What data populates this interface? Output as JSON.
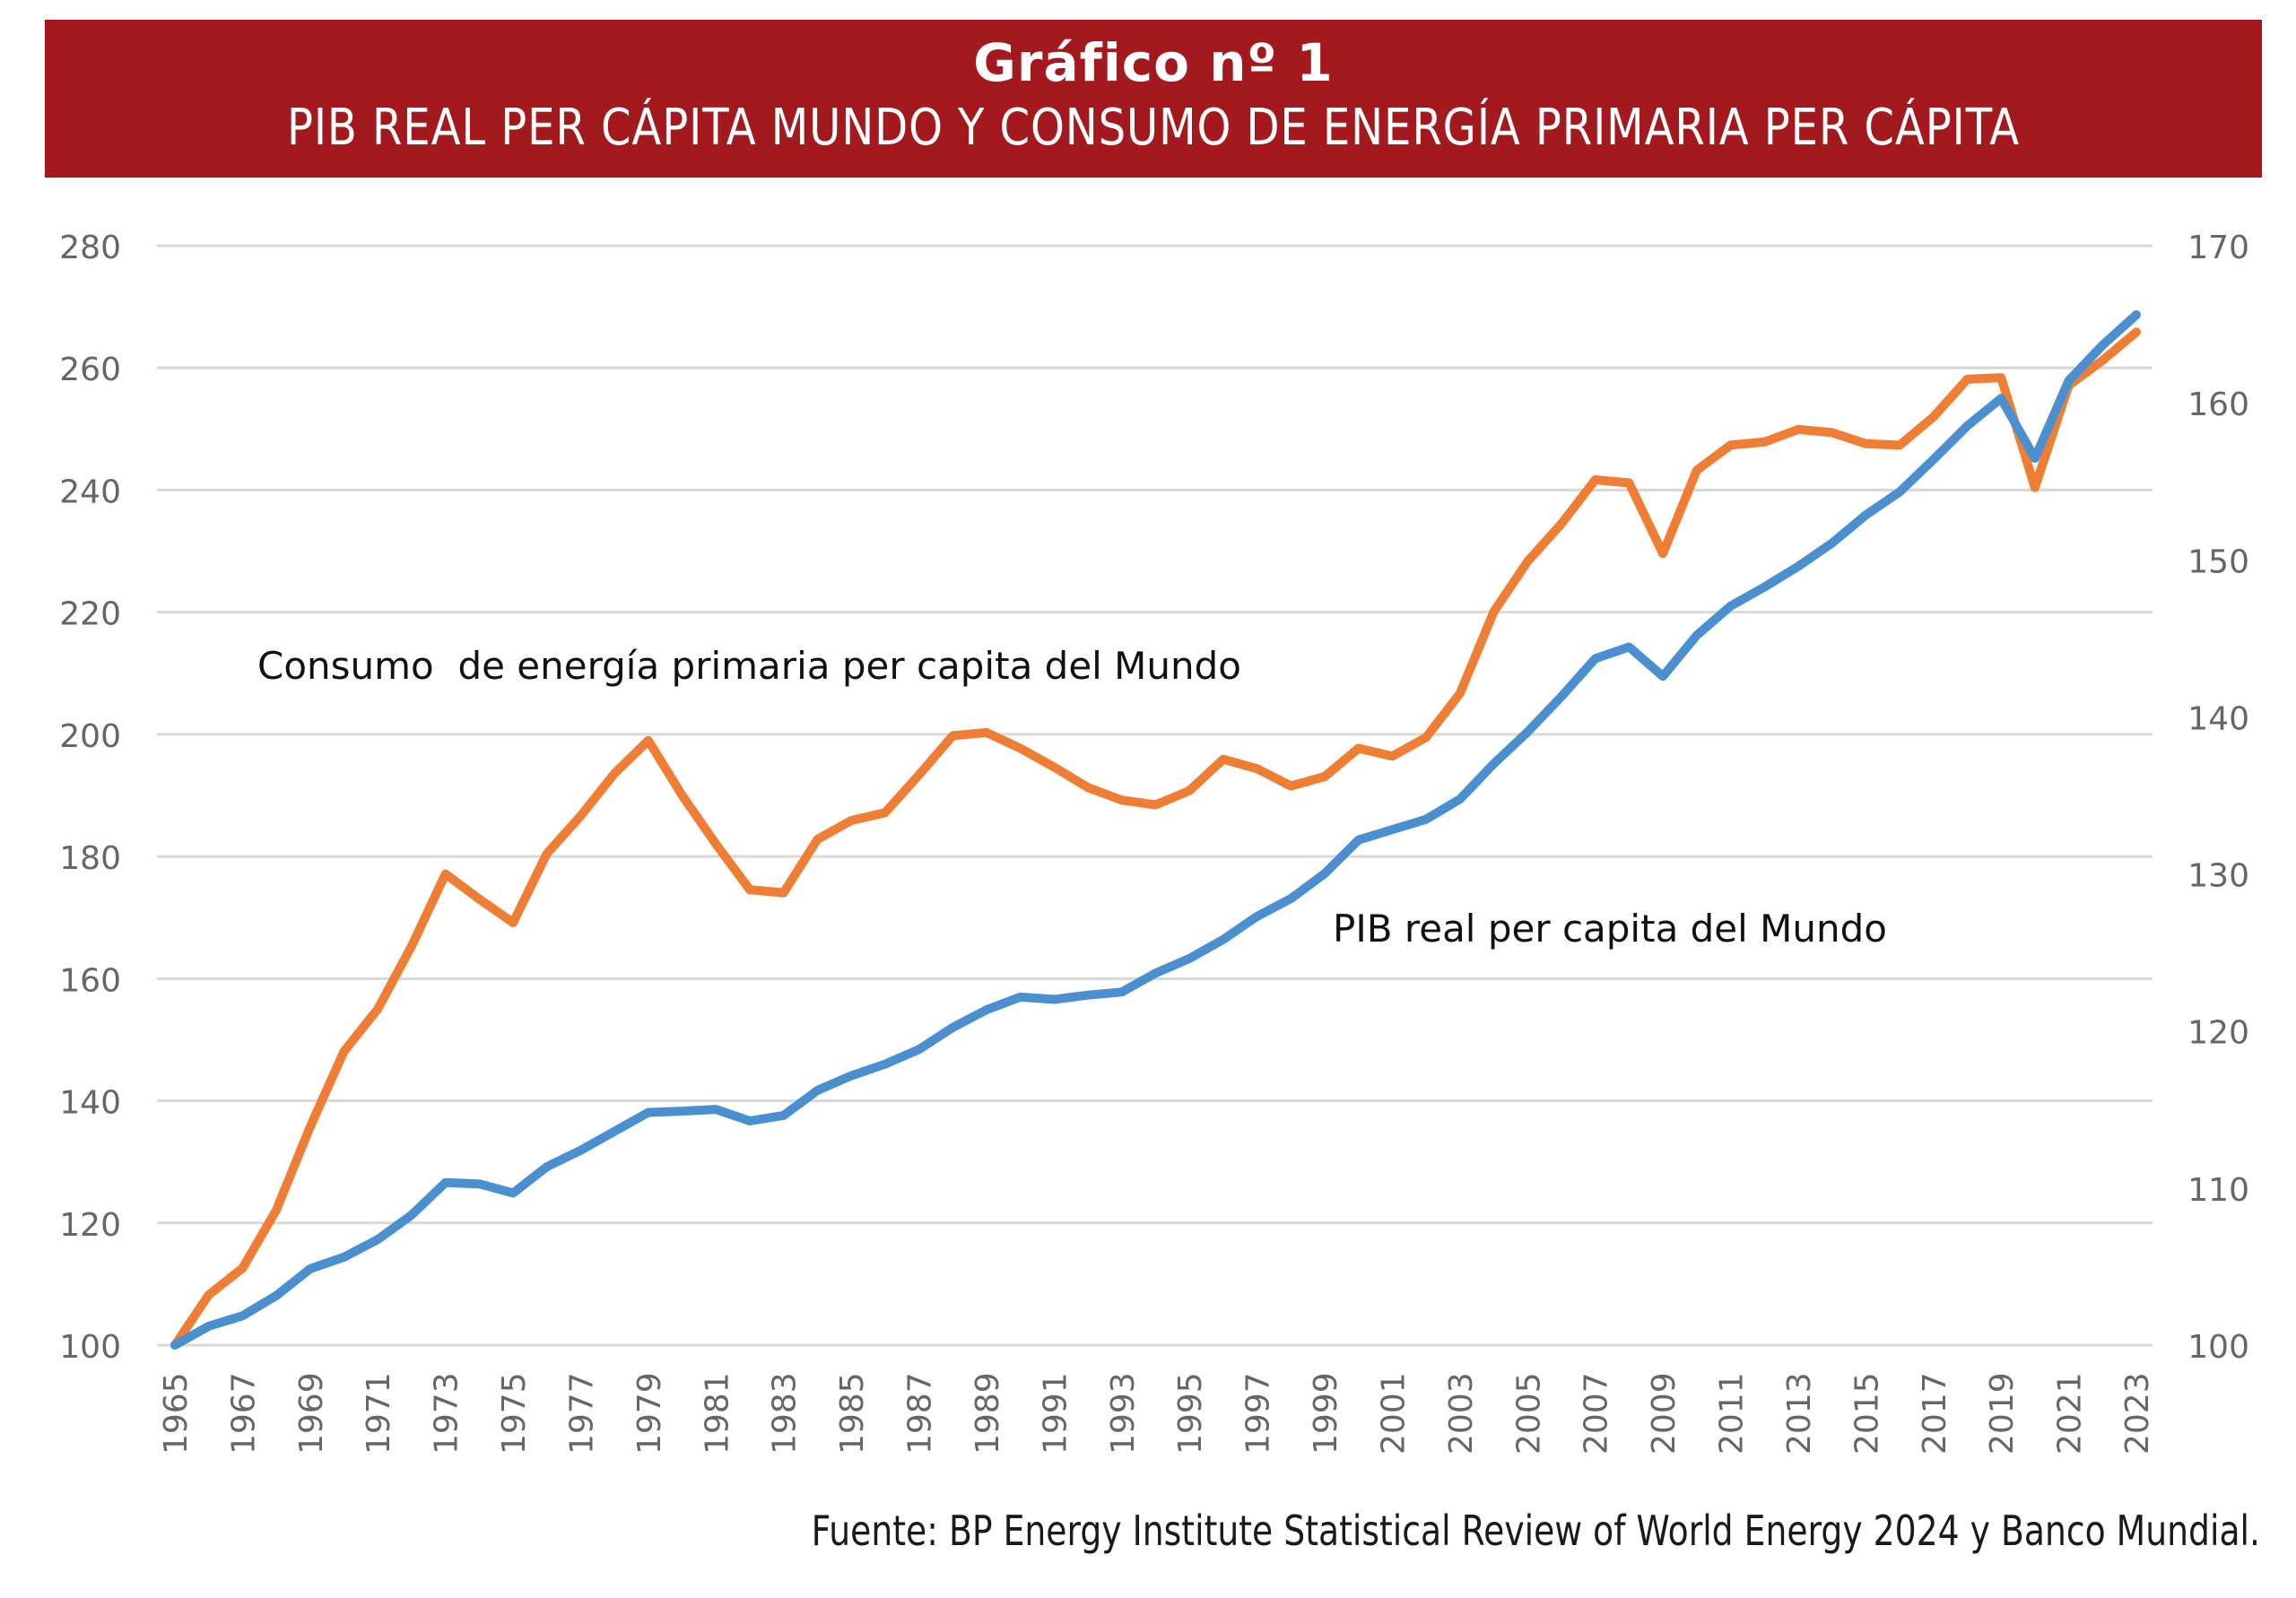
{
  "header": {
    "title": "Gráfico nº 1",
    "subtitle": "PIB REAL PER CÁPITA MUNDO Y CONSUMO DE ENERGÍA PRIMARIA PER CÁPITA",
    "background_color": "#a3191d"
  },
  "source": "Fuente: BP Energy Institute Statistical Review of World Energy 2024 y Banco Mundial.",
  "chart_data": {
    "type": "line",
    "title": "PIB REAL PER CÁPITA MUNDO Y CONSUMO DE ENERGÍA PRIMARIA PER CÁPITA",
    "xlabel": "",
    "ylabel_left": "",
    "ylabel_right": "",
    "x": [
      1965,
      1966,
      1967,
      1968,
      1969,
      1970,
      1971,
      1972,
      1973,
      1974,
      1975,
      1976,
      1977,
      1978,
      1979,
      1980,
      1981,
      1982,
      1983,
      1984,
      1985,
      1986,
      1987,
      1988,
      1989,
      1990,
      1991,
      1992,
      1993,
      1994,
      1995,
      1996,
      1997,
      1998,
      1999,
      2000,
      2001,
      2002,
      2003,
      2004,
      2005,
      2006,
      2007,
      2008,
      2009,
      2010,
      2011,
      2012,
      2013,
      2014,
      2015,
      2016,
      2017,
      2018,
      2019,
      2020,
      2021,
      2022,
      2023
    ],
    "x_tick_labels": [
      "1965",
      "1967",
      "1969",
      "1971",
      "1973",
      "1975",
      "1977",
      "1979",
      "1981",
      "1983",
      "1985",
      "1987",
      "1989",
      "1991",
      "1993",
      "1995",
      "1997",
      "1999",
      "2001",
      "2003",
      "2005",
      "2007",
      "2009",
      "2011",
      "2013",
      "2015",
      "2017",
      "2019",
      "2021",
      "2023"
    ],
    "y_left": {
      "range": [
        100,
        280
      ],
      "ticks": [
        "100",
        "120",
        "140",
        "160",
        "180",
        "200",
        "220",
        "240",
        "260",
        "280"
      ]
    },
    "y_right": {
      "range": [
        100,
        170
      ],
      "ticks": [
        "100",
        "110",
        "120",
        "130",
        "140",
        "150",
        "160",
        "170"
      ]
    },
    "grid": true,
    "series": [
      {
        "name": "PIB real per capita del Mundo",
        "axis": "left",
        "color": "#4a90d0",
        "values": [
          100.0,
          103.1,
          104.8,
          108.1,
          112.5,
          114.4,
          117.3,
          121.3,
          126.6,
          126.4,
          124.9,
          129.2,
          131.9,
          135.0,
          138.1,
          138.3,
          138.6,
          136.7,
          137.6,
          141.7,
          144.1,
          146.0,
          148.4,
          152.0,
          154.9,
          157.0,
          156.6,
          157.3,
          157.8,
          160.9,
          163.3,
          166.4,
          170.2,
          173.1,
          177.2,
          182.7,
          184.4,
          186.1,
          189.4,
          195.2,
          200.4,
          206.2,
          212.4,
          214.3,
          209.5,
          216.2,
          221.0,
          224.1,
          227.5,
          231.3,
          235.9,
          239.7,
          245.0,
          250.5,
          255.0,
          245.2,
          257.9,
          263.7,
          268.7
        ]
      },
      {
        "name": "Consumo  de energía primaria per capita del Mundo",
        "axis": "right",
        "color": "#ef7d33",
        "values": [
          100.0,
          103.2,
          104.9,
          108.6,
          113.9,
          118.7,
          121.4,
          125.4,
          130.0,
          128.4,
          126.9,
          131.3,
          133.7,
          136.4,
          138.5,
          135.0,
          131.9,
          129.0,
          128.8,
          132.2,
          133.4,
          133.9,
          136.3,
          138.8,
          139.0,
          138.0,
          136.8,
          135.5,
          134.7,
          134.4,
          135.3,
          137.3,
          136.7,
          135.6,
          136.2,
          138.0,
          137.5,
          138.7,
          141.5,
          146.7,
          149.9,
          152.3,
          155.1,
          154.9,
          150.4,
          155.7,
          157.3,
          157.5,
          158.3,
          158.1,
          157.4,
          157.3,
          159.1,
          161.5,
          161.6,
          154.6,
          161.1,
          162.7,
          164.5
        ]
      }
    ],
    "annotations": [
      {
        "text": "Consumo  de energía primaria per capita del Mundo",
        "series": "energy"
      },
      {
        "text": "PIB real per capita del Mundo",
        "series": "gdp"
      }
    ]
  }
}
